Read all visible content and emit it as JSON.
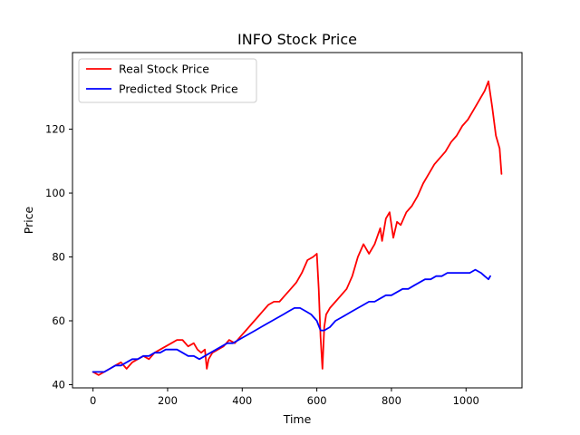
{
  "chart_data": {
    "type": "line",
    "title": "INFO Stock Price",
    "xlabel": "Time",
    "ylabel": "Price",
    "xlim": [
      -55,
      1150
    ],
    "ylim": [
      39,
      144
    ],
    "xticks": [
      0,
      200,
      400,
      600,
      800,
      1000
    ],
    "yticks": [
      40,
      60,
      80,
      100,
      120
    ],
    "grid": false,
    "legend_position": "top-left",
    "series": [
      {
        "name": "Real Stock Price",
        "color": "#ff0000",
        "x": [
          0,
          15,
          30,
          45,
          60,
          75,
          90,
          105,
          120,
          135,
          150,
          165,
          180,
          195,
          210,
          225,
          240,
          255,
          270,
          280,
          290,
          300,
          305,
          310,
          320,
          335,
          350,
          365,
          380,
          395,
          410,
          425,
          440,
          455,
          470,
          485,
          500,
          515,
          530,
          545,
          560,
          575,
          590,
          600,
          605,
          610,
          615,
          620,
          625,
          635,
          650,
          665,
          680,
          695,
          710,
          725,
          740,
          755,
          770,
          775,
          785,
          795,
          805,
          815,
          825,
          840,
          855,
          870,
          885,
          900,
          915,
          930,
          945,
          960,
          975,
          990,
          1005,
          1020,
          1030,
          1040,
          1050,
          1060,
          1070,
          1080,
          1090,
          1095
        ],
        "y": [
          44,
          43,
          44,
          45,
          46,
          47,
          45,
          47,
          48,
          49,
          48,
          50,
          51,
          52,
          53,
          54,
          54,
          52,
          53,
          51,
          50,
          51,
          45,
          48,
          50,
          51,
          52,
          54,
          53,
          55,
          57,
          59,
          61,
          63,
          65,
          66,
          66,
          68,
          70,
          72,
          75,
          79,
          80,
          81,
          70,
          55,
          45,
          58,
          62,
          64,
          66,
          68,
          70,
          74,
          80,
          84,
          81,
          84,
          89,
          85,
          92,
          94,
          86,
          91,
          90,
          94,
          96,
          99,
          103,
          106,
          109,
          111,
          113,
          116,
          118,
          121,
          123,
          126,
          128,
          130,
          132,
          135,
          127,
          118,
          114,
          106
        ]
      },
      {
        "name": "Predicted Stock Price",
        "color": "#0000ff",
        "x": [
          0,
          15,
          30,
          45,
          60,
          75,
          90,
          105,
          120,
          135,
          150,
          165,
          180,
          195,
          210,
          225,
          240,
          255,
          270,
          285,
          300,
          315,
          330,
          345,
          360,
          375,
          390,
          405,
          420,
          435,
          450,
          465,
          480,
          495,
          510,
          525,
          540,
          555,
          570,
          585,
          600,
          610,
          620,
          635,
          650,
          665,
          680,
          695,
          710,
          725,
          740,
          755,
          770,
          785,
          800,
          815,
          830,
          845,
          860,
          875,
          890,
          905,
          920,
          935,
          950,
          965,
          980,
          995,
          1010,
          1025,
          1040,
          1050,
          1060,
          1065
        ],
        "y": [
          44,
          44,
          44,
          45,
          46,
          46,
          47,
          48,
          48,
          49,
          49,
          50,
          50,
          51,
          51,
          51,
          50,
          49,
          49,
          48,
          49,
          50,
          51,
          52,
          53,
          53,
          54,
          55,
          56,
          57,
          58,
          59,
          60,
          61,
          62,
          63,
          64,
          64,
          63,
          62,
          60,
          57,
          57,
          58,
          60,
          61,
          62,
          63,
          64,
          65,
          66,
          66,
          67,
          68,
          68,
          69,
          70,
          70,
          71,
          72,
          73,
          73,
          74,
          74,
          75,
          75,
          75,
          75,
          75,
          76,
          75,
          74,
          73,
          74
        ]
      }
    ]
  }
}
